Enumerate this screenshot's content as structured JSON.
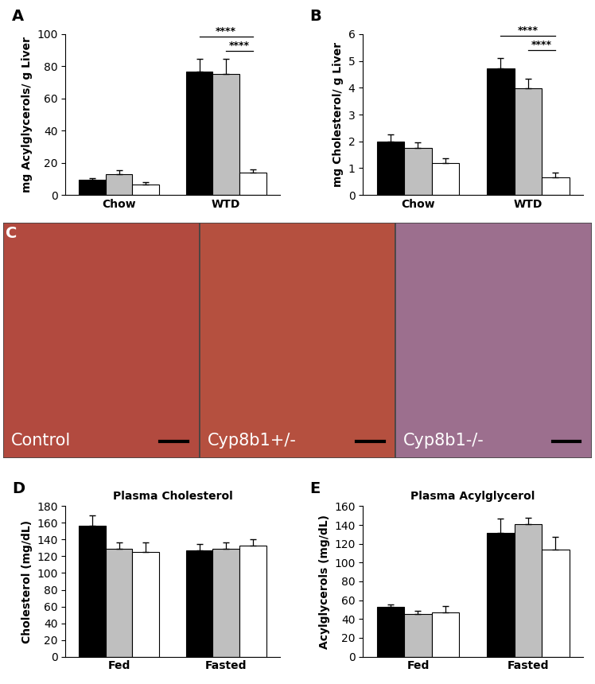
{
  "chart_data": [
    {
      "panel": "A",
      "type": "bar",
      "categories": [
        "Chow",
        "WTD"
      ],
      "y_label": "mg Acylglycerols/ g Liver",
      "series": [
        {
          "color": "#000000",
          "values": [
            9.5,
            76.5
          ],
          "errors": [
            1.0,
            8.0
          ]
        },
        {
          "color": "#bfbfbf",
          "values": [
            13.0,
            75.5
          ],
          "errors": [
            2.5,
            9.0
          ]
        },
        {
          "color": "#ffffff",
          "values": [
            6.5,
            14.0
          ],
          "errors": [
            1.5,
            2.0
          ]
        }
      ],
      "ylim": [
        0,
        100
      ],
      "yticks": [
        0,
        20,
        40,
        60,
        80,
        100
      ],
      "annotations": [
        {
          "text": "****",
          "category": "WTD",
          "from_series": 0,
          "to_series": 2
        },
        {
          "text": "****",
          "category": "WTD",
          "from_series": 1,
          "to_series": 2
        }
      ]
    },
    {
      "panel": "B",
      "type": "bar",
      "categories": [
        "Chow",
        "WTD"
      ],
      "y_label": "mg Cholesterol/ g Liver",
      "series": [
        {
          "color": "#000000",
          "values": [
            2.0,
            4.72
          ],
          "errors": [
            0.25,
            0.38
          ]
        },
        {
          "color": "#bfbfbf",
          "values": [
            1.75,
            3.98
          ],
          "errors": [
            0.2,
            0.37
          ]
        },
        {
          "color": "#ffffff",
          "values": [
            1.2,
            0.65
          ],
          "errors": [
            0.18,
            0.18
          ]
        }
      ],
      "ylim": [
        0,
        6
      ],
      "yticks": [
        0,
        1,
        2,
        3,
        4,
        5,
        6
      ],
      "annotations": [
        {
          "text": "****",
          "category": "WTD",
          "from_series": 0,
          "to_series": 2
        },
        {
          "text": "****",
          "category": "WTD",
          "from_series": 1,
          "to_series": 2
        }
      ]
    },
    {
      "panel": "C",
      "type": "image",
      "images": [
        "Control",
        "Cyp8b1+/-",
        "Cyp8b1-/-"
      ]
    },
    {
      "panel": "D",
      "type": "bar",
      "title": "Plasma Cholesterol",
      "categories": [
        "Fed",
        "Fasted"
      ],
      "y_label": "Cholesterol (mg/dL)",
      "series": [
        {
          "color": "#000000",
          "values": [
            157,
            127
          ],
          "errors": [
            12,
            8
          ]
        },
        {
          "color": "#bfbfbf",
          "values": [
            129,
            129
          ],
          "errors": [
            8,
            8
          ]
        },
        {
          "color": "#ffffff",
          "values": [
            125,
            132.5
          ],
          "errors": [
            12,
            8
          ]
        }
      ],
      "ylim": [
        0,
        180
      ],
      "yticks": [
        0,
        20,
        40,
        60,
        80,
        100,
        120,
        140,
        160,
        180
      ]
    },
    {
      "panel": "E",
      "type": "bar",
      "title": "Plasma Acylglycerol",
      "categories": [
        "Fed",
        "Fasted"
      ],
      "y_label": "Acylglycerols (mg/dL)",
      "series": [
        {
          "color": "#000000",
          "values": [
            53,
            132
          ],
          "errors": [
            2.5,
            15
          ]
        },
        {
          "color": "#bfbfbf",
          "values": [
            45.5,
            140.5
          ],
          "errors": [
            3.5,
            7
          ]
        },
        {
          "color": "#ffffff",
          "values": [
            47,
            113.5
          ],
          "errors": [
            6.5,
            14
          ]
        }
      ],
      "ylim": [
        0,
        160
      ],
      "yticks": [
        0,
        20,
        40,
        60,
        80,
        100,
        120,
        140,
        160
      ]
    }
  ]
}
